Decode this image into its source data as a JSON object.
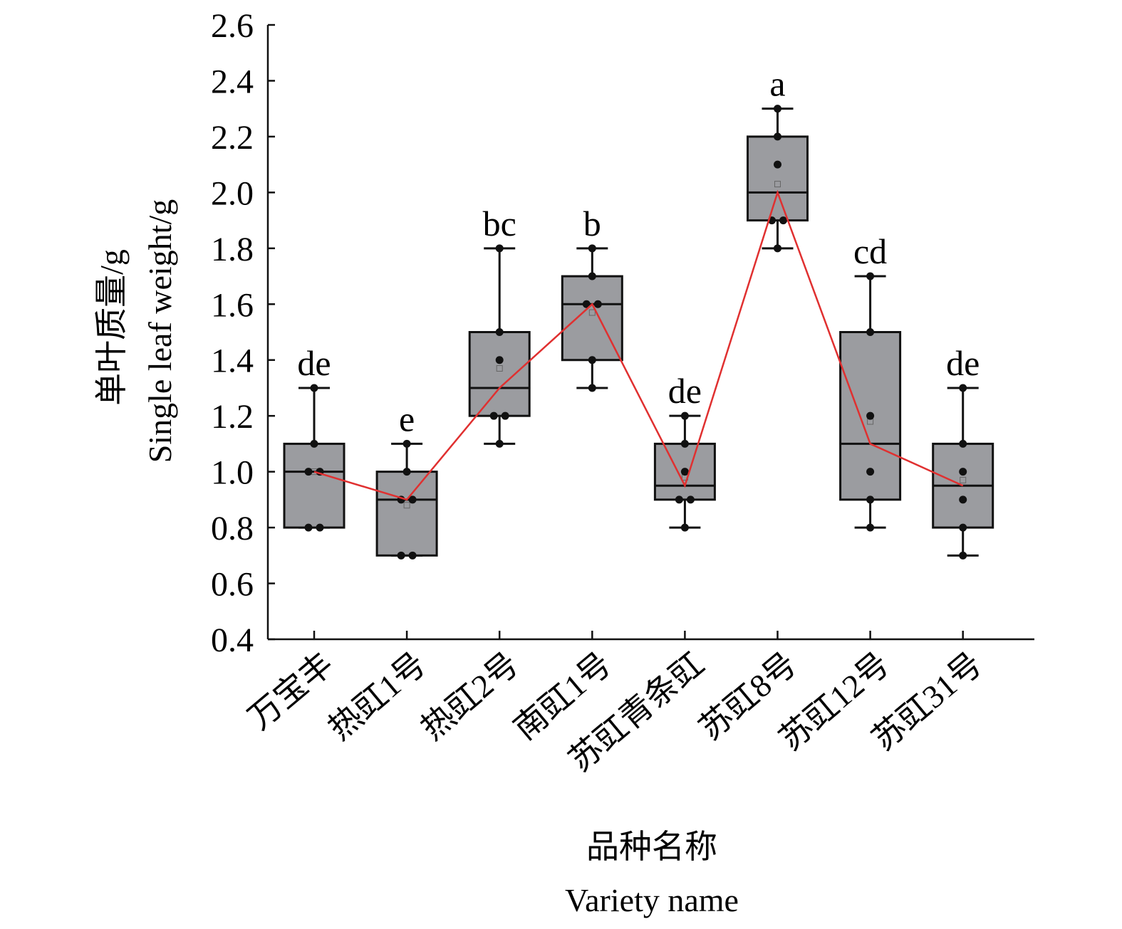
{
  "chart_data": {
    "type": "box",
    "ylabel_cn": "单叶质量/g",
    "ylabel_en": "Single leaf weight/g",
    "xlabel_cn": "品种名称",
    "xlabel_en": "Variety name",
    "ylim": [
      0.4,
      2.6
    ],
    "yticks": [
      "0.4",
      "0.6",
      "0.8",
      "1.0",
      "1.2",
      "1.4",
      "1.6",
      "1.8",
      "2.0",
      "2.2",
      "2.4",
      "2.6"
    ],
    "categories": [
      "万宝丰",
      "热豇1号",
      "热豇2号",
      "南豇1号",
      "苏豇青条豇",
      "苏豇8号",
      "苏豇12号",
      "苏豇31号"
    ],
    "significance": [
      "de",
      "e",
      "bc",
      "b",
      "de",
      "a",
      "cd",
      "de"
    ],
    "points": [
      [
        0.8,
        0.8,
        1.0,
        1.0,
        1.1,
        1.3
      ],
      [
        0.7,
        0.7,
        0.9,
        0.9,
        1.0,
        1.1
      ],
      [
        1.1,
        1.2,
        1.2,
        1.4,
        1.5,
        1.8
      ],
      [
        1.3,
        1.4,
        1.6,
        1.6,
        1.7,
        1.8
      ],
      [
        0.8,
        0.9,
        0.9,
        1.0,
        1.1,
        1.2
      ],
      [
        1.8,
        1.9,
        1.9,
        2.1,
        2.2,
        2.3
      ],
      [
        0.8,
        0.9,
        1.0,
        1.2,
        1.5,
        1.7
      ],
      [
        0.7,
        0.8,
        0.9,
        1.0,
        1.1,
        1.3
      ]
    ],
    "boxes": [
      {
        "min": 0.8,
        "q1": 0.8,
        "median": 1.0,
        "q3": 1.1,
        "max": 1.3,
        "mean": 1.0
      },
      {
        "min": 0.7,
        "q1": 0.7,
        "median": 0.9,
        "q3": 1.0,
        "max": 1.1,
        "mean": 0.88
      },
      {
        "min": 1.1,
        "q1": 1.2,
        "median": 1.3,
        "q3": 1.5,
        "max": 1.8,
        "mean": 1.37
      },
      {
        "min": 1.3,
        "q1": 1.4,
        "median": 1.6,
        "q3": 1.7,
        "max": 1.8,
        "mean": 1.57
      },
      {
        "min": 0.8,
        "q1": 0.9,
        "median": 0.95,
        "q3": 1.1,
        "max": 1.2,
        "mean": 0.98
      },
      {
        "min": 1.8,
        "q1": 1.9,
        "median": 2.0,
        "q3": 2.2,
        "max": 2.3,
        "mean": 2.03
      },
      {
        "min": 0.8,
        "q1": 0.9,
        "median": 1.1,
        "q3": 1.5,
        "max": 1.7,
        "mean": 1.18
      },
      {
        "min": 0.7,
        "q1": 0.8,
        "median": 0.95,
        "q3": 1.1,
        "max": 1.3,
        "mean": 0.97
      }
    ],
    "colors": {
      "box": "#9b9ca0",
      "line": "#e03030",
      "axis": "#111111"
    }
  }
}
